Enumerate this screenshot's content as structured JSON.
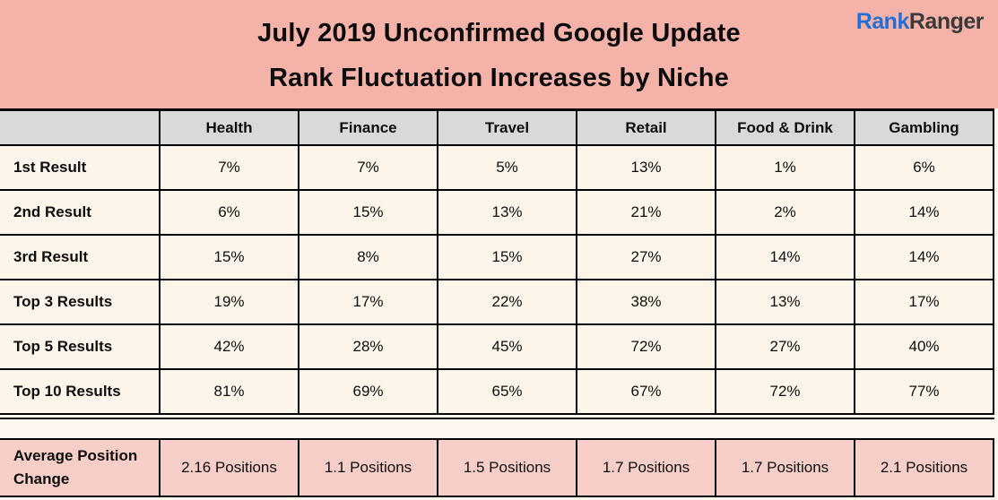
{
  "header": {
    "title_line1": "July 2019 Unconfirmed Google Update",
    "title_line2": "Rank Fluctuation Increases by Niche",
    "logo": {
      "part1": "Rank",
      "part2": "Ranger"
    }
  },
  "colors": {
    "band_pink": "#f5b2a8",
    "summary_pink": "#f8cfc8",
    "header_gray": "#d9d9d9",
    "cell_cream": "#fdf5ea",
    "logo_blue": "#2170d8",
    "logo_dark": "#3a3a3a",
    "border_black": "#000000"
  },
  "chart_data": {
    "type": "table",
    "title": "July 2019 Unconfirmed Google Update Rank Fluctuation Increases by Niche",
    "columns": [
      "Health",
      "Finance",
      "Travel",
      "Retail",
      "Food & Drink",
      "Gambling"
    ],
    "rows": [
      {
        "label": "1st Result",
        "values": [
          "7%",
          "7%",
          "5%",
          "13%",
          "1%",
          "6%"
        ]
      },
      {
        "label": "2nd Result",
        "values": [
          "6%",
          "15%",
          "13%",
          "21%",
          "2%",
          "14%"
        ]
      },
      {
        "label": "3rd Result",
        "values": [
          "15%",
          "8%",
          "15%",
          "27%",
          "14%",
          "14%"
        ]
      },
      {
        "label": "Top 3 Results",
        "values": [
          "19%",
          "17%",
          "22%",
          "38%",
          "13%",
          "17%"
        ]
      },
      {
        "label": "Top 5 Results",
        "values": [
          "42%",
          "28%",
          "45%",
          "72%",
          "27%",
          "40%"
        ]
      },
      {
        "label": "Top 10 Results",
        "values": [
          "81%",
          "69%",
          "65%",
          "67%",
          "72%",
          "77%"
        ]
      }
    ],
    "summary_row": {
      "label": "Average Position Change",
      "values": [
        "2.16 Positions",
        "1.1 Positions",
        "1.5 Positions",
        "1.7 Positions",
        "1.7 Positions",
        "2.1 Positions"
      ]
    }
  }
}
